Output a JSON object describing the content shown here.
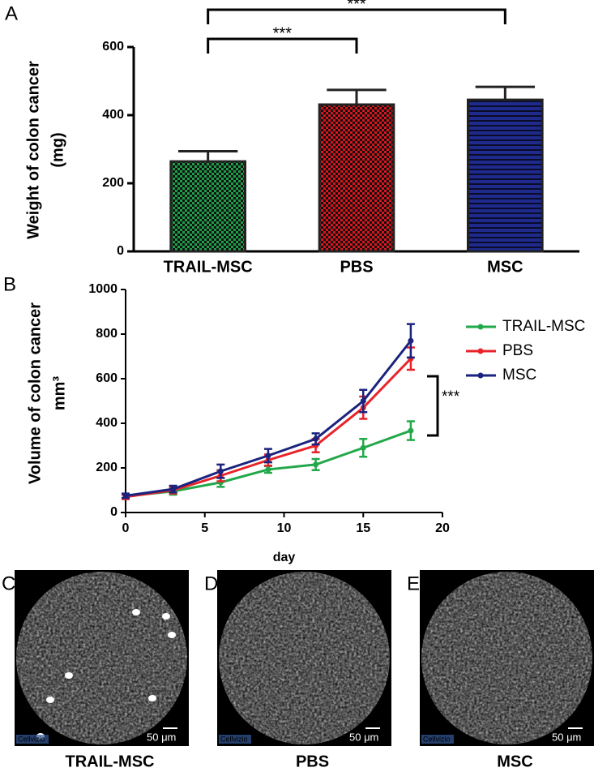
{
  "chart_data": [
    {
      "type": "bar",
      "panel": "A",
      "y_label": [
        "Weight of colon cancer",
        "(mg)"
      ],
      "categories": [
        "TRAIL-MSC",
        "PBS",
        "MSC"
      ],
      "values": [
        264,
        431,
        445
      ],
      "errors": [
        30,
        43,
        38
      ],
      "colors": [
        "#1f9e4a",
        "#d8141c",
        "#1e2a8c"
      ],
      "ylim": [
        0,
        600
      ],
      "yticks": [
        0,
        200,
        400,
        600
      ],
      "annotations": [
        "***",
        "***"
      ]
    },
    {
      "type": "line",
      "panel": "B",
      "y_label": [
        "Volume of colon cancer",
        "mm³"
      ],
      "x_label": "day",
      "x": [
        0,
        3,
        6,
        9,
        12,
        15,
        18
      ],
      "series": [
        {
          "name": "TRAIL-MSC",
          "color": "#22a84a",
          "values": [
            73,
            95,
            135,
            193,
            215,
            290,
            367
          ],
          "errors": [
            10,
            15,
            20,
            15,
            25,
            40,
            42
          ]
        },
        {
          "name": "PBS",
          "color": "#e8232a",
          "values": [
            70,
            100,
            165,
            235,
            300,
            470,
            690
          ],
          "errors": [
            10,
            15,
            25,
            25,
            30,
            50,
            50
          ]
        },
        {
          "name": "MSC",
          "color": "#1a237e",
          "values": [
            75,
            105,
            185,
            255,
            330,
            500,
            770
          ],
          "errors": [
            10,
            15,
            30,
            30,
            25,
            50,
            75
          ]
        }
      ],
      "xlim": [
        0,
        20
      ],
      "xticks": [
        0,
        5,
        10,
        15,
        20
      ],
      "ylim": [
        0,
        1000
      ],
      "yticks": [
        0,
        200,
        400,
        600,
        800,
        1000
      ],
      "annotation": "***"
    }
  ],
  "images": [
    {
      "letter": "C",
      "caption": "TRAIL-MSC",
      "scale": "50 μm",
      "watermark": "Cellvizio"
    },
    {
      "letter": "D",
      "caption": "PBS",
      "scale": "50 μm",
      "watermark": "Cellvizio"
    },
    {
      "letter": "E",
      "caption": "MSC",
      "scale": "50 μm",
      "watermark": "Cellvizio"
    }
  ]
}
